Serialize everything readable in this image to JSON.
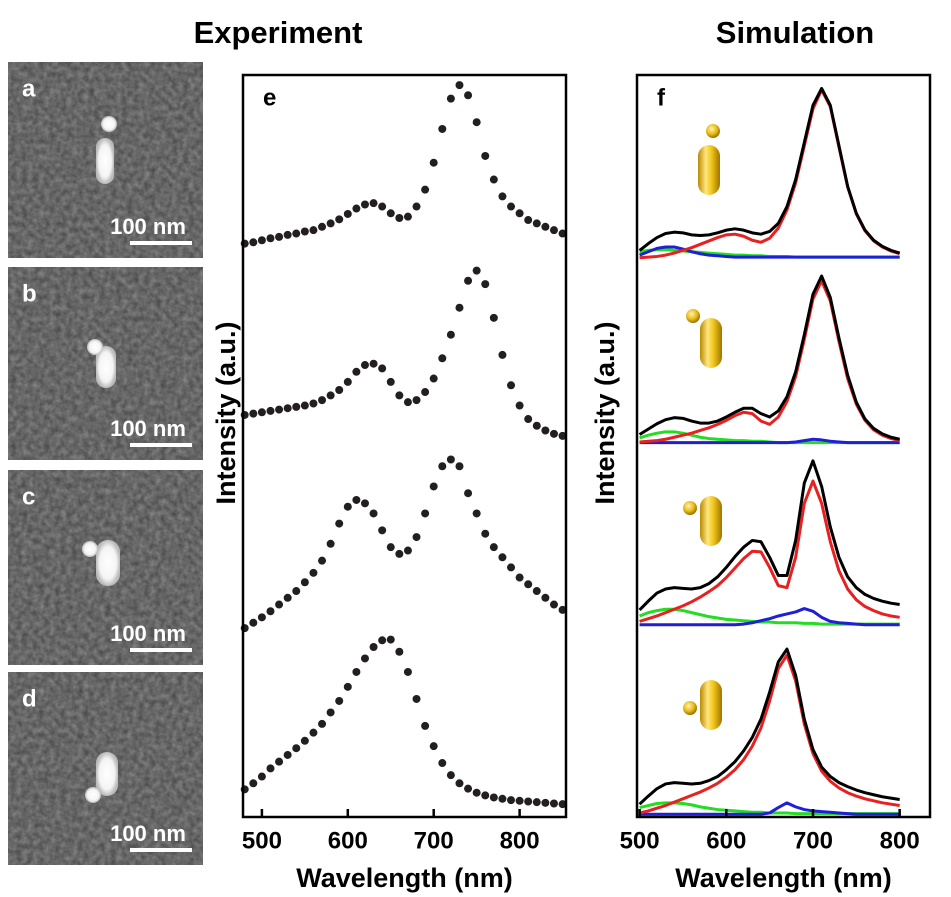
{
  "headers": [
    "Experiment",
    "Simulation"
  ],
  "sem_panels": [
    {
      "label": "a",
      "scale_bar": "100 nm"
    },
    {
      "label": "b",
      "scale_bar": "100 nm"
    },
    {
      "label": "c",
      "scale_bar": "100 nm"
    },
    {
      "label": "d",
      "scale_bar": "100 nm"
    }
  ],
  "chart_data": [
    {
      "type": "scatter",
      "panel_label": "e",
      "x_label": "Wavelength (nm)",
      "y_label": "Intensity (a.u.)",
      "xlim": [
        478,
        854
      ],
      "xticks": [
        500,
        600,
        700,
        800
      ],
      "ylim": [
        -10,
        100
      ],
      "x": [
        480,
        490,
        500,
        510,
        520,
        530,
        540,
        550,
        560,
        570,
        580,
        590,
        600,
        610,
        620,
        630,
        640,
        650,
        660,
        670,
        680,
        690,
        700,
        710,
        720,
        730,
        740,
        750,
        760,
        770,
        780,
        790,
        800,
        810,
        820,
        830,
        840,
        850
      ],
      "series": [
        {
          "color": "#231f20",
          "values": [
            75,
            75.2,
            75.5,
            75.8,
            76,
            76.3,
            76.5,
            76.8,
            77,
            77.5,
            78,
            78.6,
            79.4,
            80.2,
            80.8,
            81,
            80.5,
            79.5,
            78.8,
            79,
            80.5,
            83,
            87,
            92,
            96.5,
            98.5,
            97,
            93,
            88,
            84.5,
            82,
            80.5,
            79.5,
            78.5,
            78,
            77.5,
            77,
            76.5
          ]
        },
        {
          "color": "#231f20",
          "values": [
            49.6,
            49.8,
            50,
            50.2,
            50.4,
            50.6,
            50.8,
            51,
            51.3,
            51.8,
            52.5,
            53.3,
            54.5,
            56,
            57,
            57.2,
            56.5,
            54.5,
            52.5,
            51.5,
            51.8,
            53,
            55,
            58,
            61.5,
            65.5,
            69.5,
            71,
            69,
            64,
            58.5,
            54,
            51,
            49,
            48,
            47.3,
            46.8,
            46.5
          ]
        },
        {
          "color": "#231f20",
          "values": [
            18,
            18.8,
            19.6,
            20.5,
            21.5,
            22.5,
            23.5,
            24.8,
            26.2,
            28,
            30.5,
            33.5,
            36,
            37,
            36.5,
            35,
            32.5,
            30,
            29,
            29.5,
            31.5,
            35,
            39,
            42,
            43,
            42,
            38,
            35,
            32,
            30,
            28.5,
            27,
            25.5,
            24.5,
            23.5,
            22.5,
            21.5,
            20.7
          ]
        },
        {
          "color": "#231f20",
          "values": [
            -5.9,
            -5,
            -4,
            -2.8,
            -1.8,
            -0.8,
            0.2,
            1.3,
            2.5,
            3.8,
            5.5,
            7.2,
            9.3,
            11.5,
            13.5,
            15.2,
            16.2,
            16.3,
            14.5,
            11.5,
            7.5,
            3.5,
            0.5,
            -2,
            -3.8,
            -5,
            -5.8,
            -6.4,
            -6.8,
            -7.1,
            -7.3,
            -7.5,
            -7.6,
            -7.7,
            -7.8,
            -7.9,
            -8,
            -8.1
          ]
        }
      ]
    },
    {
      "type": "line",
      "panel_label": "f",
      "x_label": "Wavelength (nm)",
      "y_label": "Intensity (a.u.)",
      "xlim": [
        497,
        835
      ],
      "xticks": [
        500,
        600,
        700,
        800
      ],
      "ylim": [
        -10,
        100
      ],
      "x": [
        500,
        510,
        520,
        530,
        540,
        550,
        560,
        570,
        580,
        590,
        600,
        610,
        620,
        630,
        640,
        650,
        660,
        670,
        680,
        690,
        700,
        710,
        720,
        730,
        740,
        750,
        760,
        770,
        780,
        790,
        800
      ],
      "series": [
        {
          "color": "#000000",
          "values": [
            74,
            75,
            75.9,
            76.5,
            76.7,
            76.6,
            76.3,
            76.2,
            76.3,
            76.6,
            77,
            77.2,
            77,
            76.6,
            76.4,
            76.8,
            78,
            80.5,
            84.5,
            90,
            95.5,
            98,
            95.5,
            89.5,
            83.5,
            79.5,
            77,
            75.5,
            74.6,
            74,
            73.6
          ]
        },
        {
          "color": "#e8201f",
          "values": [
            72.9,
            73,
            73.1,
            73.3,
            73.6,
            74,
            74.4,
            74.9,
            75.4,
            75.9,
            76.3,
            76.4,
            76.1,
            75.5,
            75.2,
            75.8,
            77.3,
            80,
            84,
            89.5,
            95,
            97.8,
            95.3,
            89.3,
            83.4,
            79.4,
            76.9,
            75.4,
            74.5,
            73.9,
            73.5
          ]
        },
        {
          "color": "#1f1fd6",
          "values": [
            73.3,
            73.8,
            74.3,
            74.5,
            74.5,
            74.2,
            73.8,
            73.5,
            73.3,
            73.2,
            73.1,
            73,
            73,
            73,
            73,
            73,
            73,
            73,
            73,
            73,
            73,
            73,
            73,
            73,
            73,
            73,
            73,
            73,
            73,
            73,
            73
          ]
        },
        {
          "color": "#22dd22",
          "values": [
            73.8,
            74,
            74.1,
            74.1,
            74,
            73.9,
            73.8,
            73.7,
            73.6,
            73.5,
            73.4,
            73.3,
            73.3,
            73.2,
            73.2,
            73.1,
            73.1,
            73.1,
            73,
            73,
            73,
            73,
            73,
            73,
            73,
            73,
            73,
            73,
            73,
            73,
            73
          ]
        },
        {
          "color": "#000000",
          "values": [
            46.7,
            47.5,
            48.3,
            48.9,
            49.2,
            49.1,
            48.7,
            48.4,
            48.4,
            48.7,
            49.3,
            50,
            50.6,
            50.6,
            49.8,
            49.3,
            50.2,
            52.3,
            56,
            61.5,
            67.5,
            70.2,
            67,
            61,
            55.5,
            51.5,
            49,
            47.6,
            46.8,
            46.3,
            46
          ]
        },
        {
          "color": "#e8201f",
          "values": [
            45.6,
            45.7,
            45.8,
            46,
            46.3,
            46.6,
            46.9,
            47.3,
            47.7,
            48.2,
            48.8,
            49.5,
            50,
            49.8,
            48.7,
            48.2,
            49.3,
            51.6,
            55.3,
            60.8,
            66.8,
            69.5,
            66.5,
            60.5,
            55,
            51.2,
            48.8,
            47.4,
            46.6,
            46.1,
            45.8
          ]
        },
        {
          "color": "#1f1fd6",
          "values": [
            45.5,
            45.5,
            45.5,
            45.5,
            45.5,
            45.5,
            45.5,
            45.5,
            45.5,
            45.5,
            45.5,
            45.5,
            45.5,
            45.5,
            45.5,
            45.5,
            45.5,
            45.5,
            45.6,
            45.8,
            46,
            45.9,
            45.7,
            45.6,
            45.5,
            45.5,
            45.5,
            45.5,
            45.5,
            45.5,
            45.5
          ]
        },
        {
          "color": "#22dd22",
          "values": [
            46.2,
            46.6,
            46.9,
            47.1,
            47.1,
            46.9,
            46.6,
            46.3,
            46.1,
            46,
            45.9,
            45.8,
            45.8,
            45.7,
            45.7,
            45.6,
            45.5,
            45.5,
            45.5,
            45.5,
            45.5,
            45.5,
            45.5,
            45.5,
            45.5,
            45.5,
            45.5,
            45.5,
            45.5,
            45.5,
            45.5
          ]
        },
        {
          "color": "#000000",
          "values": [
            20.7,
            22,
            23.2,
            23.8,
            24,
            23.9,
            23.8,
            24,
            24.6,
            25.6,
            27,
            28.6,
            30,
            31,
            30.8,
            28.5,
            25.8,
            25.8,
            31,
            39.5,
            42.8,
            39,
            33,
            28.5,
            25.6,
            24,
            23,
            22.4,
            22,
            21.7,
            21.5
          ]
        },
        {
          "color": "#e8201f",
          "values": [
            19,
            19.4,
            19.8,
            20.3,
            20.8,
            21.3,
            21.9,
            22.6,
            23.4,
            24.3,
            25.5,
            26.9,
            28.3,
            29.4,
            29.3,
            27,
            24.3,
            24,
            28.5,
            36.5,
            39.8,
            36.5,
            30.8,
            26.5,
            23.8,
            22.2,
            21.2,
            20.6,
            20.1,
            19.8,
            19.6
          ]
        },
        {
          "color": "#1f1fd6",
          "values": [
            18.5,
            18.5,
            18.5,
            18.5,
            18.5,
            18.5,
            18.5,
            18.5,
            18.5,
            18.5,
            18.5,
            18.5,
            18.6,
            18.8,
            19.1,
            19.4,
            19.8,
            20.1,
            20.4,
            20.9,
            20.5,
            19.6,
            19,
            18.8,
            18.7,
            18.6,
            18.5,
            18.5,
            18.5,
            18.5,
            18.5
          ]
        },
        {
          "color": "#22dd22",
          "values": [
            19.8,
            20.3,
            20.6,
            20.8,
            20.8,
            20.6,
            20.3,
            20,
            19.7,
            19.5,
            19.3,
            19.2,
            19.1,
            19,
            18.9,
            18.9,
            18.8,
            18.8,
            18.8,
            18.7,
            18.7,
            18.6,
            18.6,
            18.6,
            18.6,
            18.6,
            18.6,
            18.6,
            18.6,
            18.6,
            18.6
          ]
        },
        {
          "color": "#000000",
          "values": [
            -8.1,
            -6.9,
            -5.8,
            -5.1,
            -4.9,
            -5,
            -5.1,
            -5,
            -4.6,
            -4,
            -3,
            -1.8,
            -0.2,
            1.8,
            4.5,
            8.5,
            13,
            14.9,
            11,
            4.5,
            0,
            -2.6,
            -4,
            -4.9,
            -5.5,
            -6,
            -6.4,
            -6.7,
            -7,
            -7.2,
            -7.4
          ]
        },
        {
          "color": "#e8201f",
          "values": [
            -9.4,
            -9.1,
            -8.7,
            -8.3,
            -7.8,
            -7.3,
            -6.8,
            -6.3,
            -5.7,
            -5,
            -4.1,
            -3,
            -1.5,
            0.5,
            3.2,
            7.2,
            12,
            14,
            10.2,
            3.8,
            -0.6,
            -3.2,
            -4.7,
            -5.7,
            -6.4,
            -6.9,
            -7.3,
            -7.6,
            -7.9,
            -8.1,
            -8.3
          ]
        },
        {
          "color": "#1f1fd6",
          "values": [
            -9.6,
            -9.6,
            -9.6,
            -9.6,
            -9.6,
            -9.6,
            -9.6,
            -9.6,
            -9.6,
            -9.6,
            -9.6,
            -9.6,
            -9.6,
            -9.6,
            -9.6,
            -9.4,
            -8.6,
            -7.9,
            -8.5,
            -8.9,
            -9.1,
            -9.2,
            -9.3,
            -9.4,
            -9.5,
            -9.6,
            -9.6,
            -9.6,
            -9.6,
            -9.6,
            -9.6
          ]
        },
        {
          "color": "#22dd22",
          "values": [
            -8.6,
            -8.3,
            -8,
            -7.9,
            -7.9,
            -8,
            -8.2,
            -8.5,
            -8.7,
            -8.9,
            -9,
            -9.1,
            -9.2,
            -9.3,
            -9.3,
            -9.4,
            -9.4,
            -9.4,
            -9.5,
            -9.5,
            -9.5,
            -9.5,
            -9.5,
            -9.5,
            -9.5,
            -9.5,
            -9.5,
            -9.5,
            -9.5,
            -9.5,
            -9.5
          ]
        }
      ]
    }
  ]
}
